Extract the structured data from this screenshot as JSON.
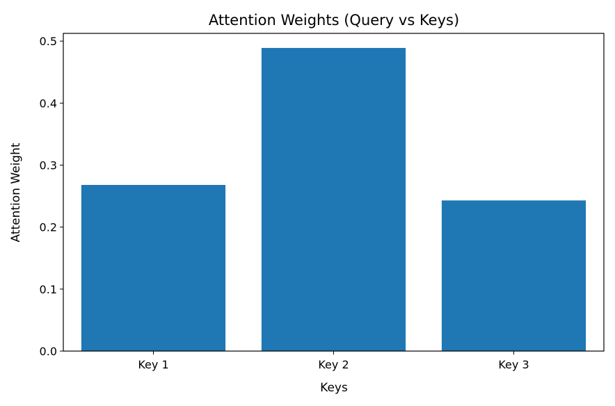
{
  "chart_data": {
    "type": "bar",
    "title": "Attention Weights (Query vs Keys)",
    "xlabel": "Keys",
    "ylabel": "Attention Weight",
    "categories": [
      "Key 1",
      "Key 2",
      "Key 3"
    ],
    "values": [
      0.268,
      0.489,
      0.243
    ],
    "ylim": [
      0,
      0.5125
    ],
    "yticks": [
      0.0,
      0.1,
      0.2,
      0.3,
      0.4,
      0.5
    ],
    "ytick_labels": [
      "0.0",
      "0.1",
      "0.2",
      "0.3",
      "0.4",
      "0.5"
    ],
    "bar_color": "#1f77b4",
    "grid": false,
    "legend": "none"
  }
}
